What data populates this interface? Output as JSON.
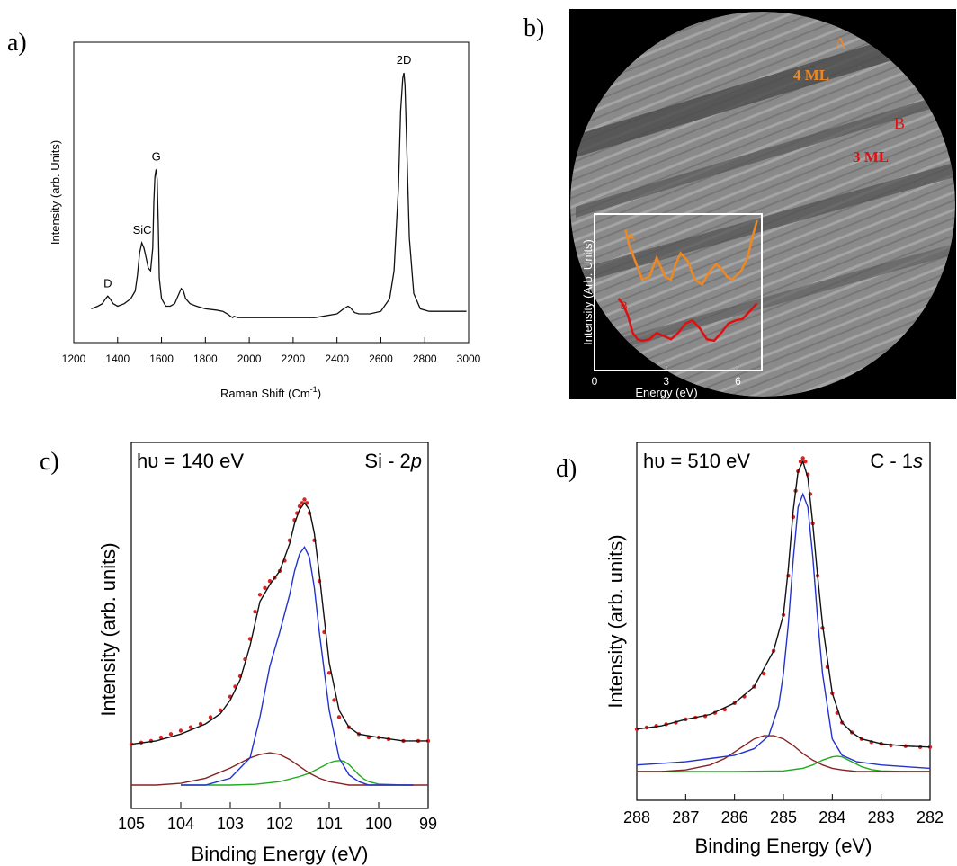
{
  "panel_labels": {
    "a": "a)",
    "b": "b)",
    "c": "c)",
    "d": "d)"
  },
  "chart_data": [
    {
      "id": "a",
      "type": "line",
      "xlabel": "Raman Shift (Cm",
      "xlabel_sup": "-1",
      "xlabel_tail": ")",
      "ylabel": "Intensity (arb. Units)",
      "xlim": [
        1200,
        3000
      ],
      "ylim": [
        0,
        1
      ],
      "x_ticks": [
        1200,
        1400,
        1600,
        1800,
        2000,
        2200,
        2400,
        2600,
        2800,
        3000
      ],
      "series": [
        {
          "x": [
            1280,
            1310,
            1330,
            1345,
            1355,
            1365,
            1380,
            1400,
            1430,
            1460,
            1480,
            1490,
            1500,
            1510,
            1520,
            1530,
            1540,
            1550,
            1560,
            1565,
            1570,
            1575,
            1580,
            1585,
            1590,
            1600,
            1620,
            1640,
            1660,
            1680,
            1690,
            1700,
            1710,
            1730,
            1760,
            1800,
            1850,
            1880,
            1900,
            1915,
            1925,
            1930,
            1950,
            2000,
            2100,
            2200,
            2300,
            2400,
            2430,
            2450,
            2460,
            2480,
            2500,
            2550,
            2600,
            2640,
            2660,
            2680,
            2690,
            2700,
            2705,
            2710,
            2720,
            2730,
            2750,
            2780,
            2820,
            2900,
            2990
          ],
          "y": [
            0.02,
            0.03,
            0.04,
            0.06,
            0.07,
            0.06,
            0.04,
            0.03,
            0.04,
            0.06,
            0.09,
            0.15,
            0.24,
            0.28,
            0.26,
            0.22,
            0.18,
            0.17,
            0.26,
            0.44,
            0.54,
            0.57,
            0.53,
            0.36,
            0.14,
            0.06,
            0.03,
            0.03,
            0.04,
            0.08,
            0.1,
            0.09,
            0.06,
            0.04,
            0.03,
            0.02,
            0.015,
            0.01,
            0.0,
            -0.01,
            -0.015,
            -0.01,
            -0.015,
            -0.015,
            -0.015,
            -0.015,
            -0.015,
            0.0,
            0.02,
            0.03,
            0.025,
            0.005,
            0.0,
            0.0,
            0.01,
            0.06,
            0.17,
            0.5,
            0.8,
            0.93,
            0.95,
            0.9,
            0.6,
            0.3,
            0.08,
            0.02,
            0.01,
            0.01,
            0.01
          ]
        }
      ],
      "annotations": [
        {
          "text": "D",
          "x": 1355,
          "y": 0.07
        },
        {
          "text": "SiC",
          "x": 1512,
          "y": 0.28
        },
        {
          "text": "G",
          "x": 1576,
          "y": 0.57
        },
        {
          "text": "2D",
          "x": 2705,
          "y": 0.95
        }
      ]
    },
    {
      "id": "b",
      "type": "line",
      "labels": [
        {
          "text": "A",
          "color": "#ee8822"
        },
        {
          "text": "4 ML",
          "color": "#ee8822"
        },
        {
          "text": "B",
          "color": "#dd1111"
        },
        {
          "text": "3 ML",
          "color": "#dd1111"
        }
      ],
      "xlabel": "Energy (eV)",
      "ylabel": "Intensity (Arb. Units)",
      "xlim": [
        0,
        7
      ],
      "ylim": [
        0,
        1
      ],
      "x_ticks": [
        0,
        3,
        6
      ],
      "series": [
        {
          "name": "A",
          "color": "#ee8822",
          "x": [
            1.3,
            1.45,
            1.7,
            2.0,
            2.3,
            2.6,
            2.95,
            3.2,
            3.4,
            3.6,
            3.9,
            4.2,
            4.5,
            4.8,
            5.1,
            5.35,
            5.55,
            5.75,
            5.95,
            6.15,
            6.4,
            6.6,
            6.8
          ],
          "y": [
            0.9,
            0.8,
            0.7,
            0.58,
            0.6,
            0.72,
            0.6,
            0.58,
            0.68,
            0.75,
            0.7,
            0.58,
            0.55,
            0.63,
            0.68,
            0.64,
            0.6,
            0.58,
            0.61,
            0.64,
            0.72,
            0.85,
            0.96
          ]
        },
        {
          "name": "B",
          "color": "#dd1111",
          "x": [
            1.0,
            1.2,
            1.4,
            1.6,
            1.8,
            2.0,
            2.3,
            2.6,
            2.9,
            3.2,
            3.5,
            3.8,
            4.1,
            4.4,
            4.7,
            5.0,
            5.3,
            5.6,
            5.9,
            6.2,
            6.5,
            6.8
          ],
          "y": [
            0.46,
            0.42,
            0.35,
            0.24,
            0.2,
            0.19,
            0.2,
            0.24,
            0.22,
            0.2,
            0.24,
            0.3,
            0.32,
            0.27,
            0.2,
            0.19,
            0.24,
            0.3,
            0.32,
            0.33,
            0.38,
            0.43
          ]
        }
      ]
    },
    {
      "id": "c",
      "type": "line",
      "corner_left": "hυ = 140 eV",
      "corner_right_main": "Si - 2",
      "corner_right_italic": "p",
      "xlabel": "Binding Energy (eV)",
      "ylabel": "Intensity (arb. units)",
      "xlim": [
        105,
        99
      ],
      "ylim": [
        0,
        1
      ],
      "x_ticks": [
        105,
        104,
        103,
        102,
        101,
        100,
        99
      ],
      "series": [
        {
          "name": "data",
          "color": "#dd2222",
          "points": true,
          "x": [
            105,
            104.8,
            104.6,
            104.4,
            104.2,
            104.0,
            103.8,
            103.6,
            103.4,
            103.2,
            103.0,
            102.9,
            102.8,
            102.7,
            102.6,
            102.5,
            102.4,
            102.3,
            102.2,
            102.1,
            102.0,
            101.9,
            101.8,
            101.7,
            101.65,
            101.6,
            101.55,
            101.5,
            101.45,
            101.4,
            101.3,
            101.2,
            101.1,
            101.0,
            100.9,
            100.8,
            100.6,
            100.4,
            100.2,
            100.0,
            99.8,
            99.5,
            99.2,
            99
          ],
          "y": [
            0.12,
            0.125,
            0.13,
            0.14,
            0.15,
            0.16,
            0.17,
            0.18,
            0.2,
            0.22,
            0.26,
            0.29,
            0.32,
            0.37,
            0.43,
            0.51,
            0.56,
            0.58,
            0.6,
            0.61,
            0.63,
            0.66,
            0.72,
            0.78,
            0.8,
            0.82,
            0.83,
            0.84,
            0.83,
            0.8,
            0.72,
            0.6,
            0.45,
            0.33,
            0.25,
            0.2,
            0.17,
            0.15,
            0.14,
            0.14,
            0.135,
            0.13,
            0.13,
            0.13
          ]
        },
        {
          "name": "fit",
          "color": "#111111",
          "x": [
            105,
            104.5,
            104.0,
            103.5,
            103.2,
            103.0,
            102.8,
            102.6,
            102.4,
            102.2,
            102.0,
            101.8,
            101.7,
            101.6,
            101.5,
            101.4,
            101.3,
            101.2,
            101.0,
            100.8,
            100.6,
            100.4,
            100.0,
            99.5,
            99
          ],
          "y": [
            0.12,
            0.13,
            0.15,
            0.18,
            0.21,
            0.25,
            0.31,
            0.41,
            0.54,
            0.59,
            0.63,
            0.71,
            0.77,
            0.81,
            0.83,
            0.81,
            0.74,
            0.62,
            0.36,
            0.22,
            0.17,
            0.15,
            0.14,
            0.13,
            0.13
          ]
        },
        {
          "name": "comp-1",
          "color": "#2233cc",
          "x": [
            104,
            103.5,
            103,
            102.6,
            102.4,
            102.2,
            102.0,
            101.8,
            101.7,
            101.6,
            101.5,
            101.4,
            101.3,
            101.2,
            101.0,
            100.8,
            100.6,
            100.4,
            100.2,
            100.0,
            99.5,
            99.3
          ],
          "y": [
            0.0,
            0.0,
            0.02,
            0.08,
            0.2,
            0.35,
            0.45,
            0.56,
            0.63,
            0.68,
            0.7,
            0.67,
            0.58,
            0.45,
            0.22,
            0.08,
            0.03,
            0.01,
            0.0,
            0.0,
            0.0,
            0.0
          ]
        },
        {
          "name": "comp-2",
          "color": "#882222",
          "x": [
            105,
            104.5,
            104.0,
            103.5,
            103.0,
            102.6,
            102.4,
            102.2,
            102.0,
            101.8,
            101.6,
            101.4,
            101.2,
            101.0,
            100.8,
            100.6,
            100.4,
            100.0,
            99.5,
            99
          ],
          "y": [
            0.0,
            0.0,
            0.005,
            0.02,
            0.05,
            0.08,
            0.09,
            0.095,
            0.09,
            0.075,
            0.055,
            0.035,
            0.02,
            0.01,
            0.005,
            0.0,
            0.0,
            0.0,
            0.0,
            0.0
          ]
        },
        {
          "name": "comp-3",
          "color": "#22aa22",
          "x": [
            104,
            103.5,
            103.0,
            102.5,
            102.0,
            101.6,
            101.4,
            101.2,
            101.0,
            100.9,
            100.8,
            100.7,
            100.6,
            100.5,
            100.4,
            100.3,
            100.2,
            100.0,
            99.5,
            99.3
          ],
          "y": [
            0.0,
            0.0,
            0.0,
            0.002,
            0.01,
            0.025,
            0.035,
            0.05,
            0.065,
            0.07,
            0.072,
            0.07,
            0.06,
            0.045,
            0.03,
            0.018,
            0.01,
            0.003,
            0.0,
            0.0
          ]
        }
      ]
    },
    {
      "id": "d",
      "type": "line",
      "corner_left": "hυ = 510 eV",
      "corner_right_main": "C - 1",
      "corner_right_italic": "s",
      "xlabel": "Binding Energy (eV)",
      "ylabel": "Intensity (arb. units)",
      "xlim": [
        288,
        282
      ],
      "ylim": [
        0,
        1
      ],
      "x_ticks": [
        288,
        287,
        286,
        285,
        284,
        283,
        282
      ],
      "series": [
        {
          "name": "data",
          "color": "#dd2222",
          "points": true,
          "x": [
            288,
            287.8,
            287.6,
            287.4,
            287.2,
            287.0,
            286.8,
            286.6,
            286.4,
            286.2,
            286.0,
            285.8,
            285.6,
            285.4,
            285.2,
            285.0,
            284.9,
            284.8,
            284.75,
            284.7,
            284.65,
            284.6,
            284.55,
            284.5,
            284.45,
            284.4,
            284.3,
            284.2,
            284.1,
            284.0,
            283.9,
            283.8,
            283.6,
            283.4,
            283.2,
            283.0,
            282.8,
            282.5,
            282.2,
            282
          ],
          "y": [
            0.13,
            0.135,
            0.14,
            0.145,
            0.15,
            0.16,
            0.165,
            0.17,
            0.18,
            0.19,
            0.21,
            0.23,
            0.26,
            0.3,
            0.37,
            0.48,
            0.6,
            0.78,
            0.86,
            0.92,
            0.95,
            0.96,
            0.95,
            0.91,
            0.85,
            0.76,
            0.6,
            0.44,
            0.32,
            0.24,
            0.18,
            0.15,
            0.12,
            0.1,
            0.09,
            0.085,
            0.08,
            0.078,
            0.075,
            0.075
          ]
        },
        {
          "name": "fit",
          "color": "#111111",
          "x": [
            288,
            287.5,
            287.0,
            286.5,
            286.0,
            285.6,
            285.2,
            285.0,
            284.9,
            284.8,
            284.7,
            284.6,
            284.5,
            284.4,
            284.3,
            284.2,
            284.0,
            283.8,
            283.6,
            283.4,
            283.0,
            282.5,
            282
          ],
          "y": [
            0.13,
            0.14,
            0.16,
            0.175,
            0.21,
            0.26,
            0.37,
            0.48,
            0.62,
            0.8,
            0.92,
            0.95,
            0.9,
            0.76,
            0.6,
            0.45,
            0.24,
            0.15,
            0.12,
            0.1,
            0.085,
            0.078,
            0.075
          ]
        },
        {
          "name": "comp-1",
          "color": "#2233cc",
          "x": [
            288,
            287.5,
            287.0,
            286.5,
            286.0,
            285.6,
            285.3,
            285.1,
            285.0,
            284.9,
            284.8,
            284.7,
            284.6,
            284.5,
            284.4,
            284.3,
            284.2,
            284.0,
            283.8,
            283.5,
            283.0,
            282.5,
            282
          ],
          "y": [
            0.02,
            0.025,
            0.03,
            0.04,
            0.05,
            0.07,
            0.11,
            0.2,
            0.3,
            0.45,
            0.65,
            0.81,
            0.85,
            0.81,
            0.66,
            0.47,
            0.3,
            0.1,
            0.05,
            0.03,
            0.02,
            0.015,
            0.01
          ]
        },
        {
          "name": "comp-2",
          "color": "#882222",
          "x": [
            288,
            287.5,
            287.0,
            286.5,
            286.2,
            286.0,
            285.8,
            285.6,
            285.4,
            285.2,
            285.0,
            284.8,
            284.6,
            284.4,
            284.2,
            284.0,
            283.8,
            283.5,
            283.0,
            282.5,
            282
          ],
          "y": [
            0.0,
            0.0,
            0.005,
            0.02,
            0.04,
            0.06,
            0.08,
            0.1,
            0.11,
            0.11,
            0.1,
            0.08,
            0.055,
            0.035,
            0.02,
            0.01,
            0.005,
            0.0,
            0.0,
            0.0,
            0.0
          ]
        },
        {
          "name": "comp-3",
          "color": "#22aa22",
          "x": [
            288,
            287.0,
            286.0,
            285.0,
            284.6,
            284.4,
            284.2,
            284.0,
            283.9,
            283.8,
            283.6,
            283.4,
            283.2,
            283.0,
            282.5,
            282
          ],
          "y": [
            0.0,
            0.0,
            0.0,
            0.002,
            0.01,
            0.02,
            0.035,
            0.045,
            0.047,
            0.045,
            0.03,
            0.015,
            0.006,
            0.002,
            0.0,
            0.0
          ]
        }
      ]
    }
  ]
}
